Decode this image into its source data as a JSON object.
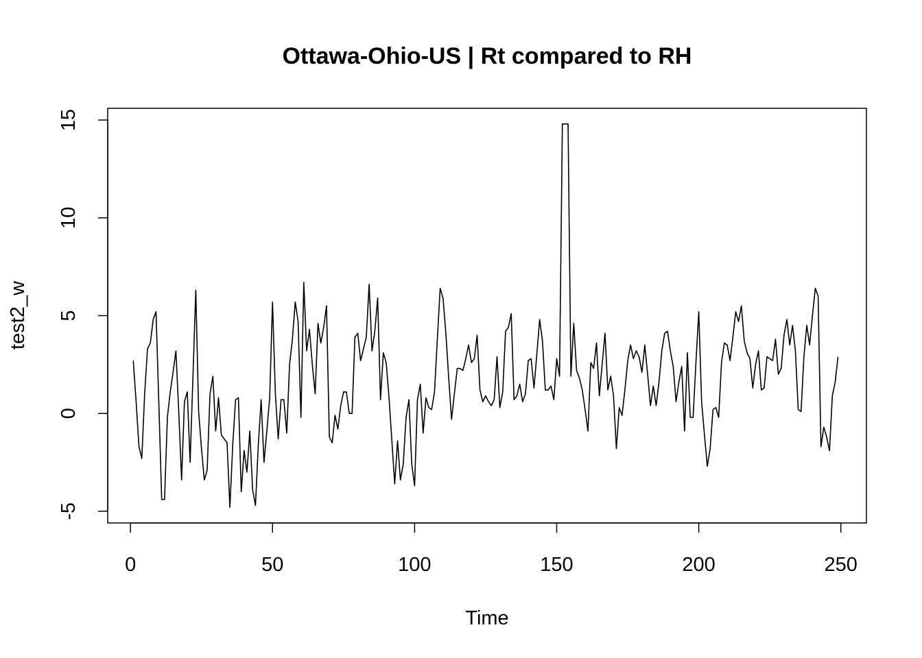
{
  "chart_data": {
    "type": "line",
    "title": "Ottawa-Ohio-US | Rt compared to RH",
    "xlabel": "Time",
    "ylabel": "test2_w",
    "xlim": [
      -8,
      259
    ],
    "ylim": [
      -5.6,
      15.6
    ],
    "xticks": [
      0,
      50,
      100,
      150,
      200,
      250
    ],
    "yticks": [
      -5,
      0,
      5,
      10,
      15
    ],
    "grid": false,
    "line_color": "#000000",
    "series": [
      {
        "x_start": 1,
        "values": [
          2.7,
          0.6,
          -1.7,
          -2.3,
          1.0,
          3.3,
          3.6,
          4.8,
          5.2,
          0.5,
          -4.4,
          -4.4,
          -0.2,
          1.1,
          2.1,
          3.2,
          0.1,
          -3.4,
          0.6,
          1.1,
          -2.5,
          1.9,
          6.3,
          0.1,
          -1.8,
          -3.4,
          -2.9,
          1.0,
          1.9,
          -0.9,
          0.8,
          -1.1,
          -1.3,
          -1.5,
          -4.8,
          -1.6,
          0.7,
          0.8,
          -4.0,
          -1.9,
          -3.0,
          -0.9,
          -3.9,
          -4.7,
          -1.6,
          0.7,
          -2.5,
          -0.9,
          0.8,
          5.7,
          1.0,
          -1.3,
          0.7,
          0.7,
          -1.0,
          2.5,
          3.8,
          5.7,
          4.7,
          -0.2,
          6.7,
          3.2,
          4.3,
          2.5,
          1.0,
          4.6,
          3.6,
          4.4,
          5.5,
          -1.2,
          -1.5,
          -0.1,
          -0.8,
          0.4,
          1.1,
          1.1,
          0.0,
          0.0,
          3.9,
          4.1,
          2.7,
          3.3,
          3.9,
          6.6,
          3.2,
          4.2,
          5.9,
          0.7,
          3.1,
          2.6,
          0.8,
          -1.4,
          -3.6,
          -1.4,
          -3.4,
          -2.6,
          -0.2,
          0.7,
          -2.6,
          -3.7,
          0.7,
          1.5,
          -1.0,
          0.8,
          0.3,
          0.2,
          1.1,
          3.8,
          6.4,
          5.9,
          4.1,
          1.8,
          -0.3,
          1.0,
          2.3,
          2.3,
          2.2,
          2.8,
          3.5,
          2.6,
          2.8,
          4.0,
          1.2,
          0.6,
          0.9,
          0.6,
          0.4,
          0.7,
          2.9,
          0.3,
          1.1,
          4.2,
          4.4,
          5.1,
          0.7,
          0.9,
          1.5,
          0.6,
          1.0,
          2.7,
          2.8,
          1.3,
          3.0,
          4.8,
          3.7,
          1.2,
          1.2,
          1.4,
          0.7,
          2.8,
          1.9,
          14.8,
          14.8,
          14.8,
          1.9,
          4.6,
          2.2,
          1.8,
          1.2,
          0.2,
          -0.9,
          2.6,
          2.3,
          3.6,
          0.9,
          2.5,
          4.1,
          1.2,
          1.9,
          0.9,
          -1.8,
          0.3,
          -0.1,
          1.2,
          2.7,
          3.5,
          2.8,
          3.2,
          2.9,
          2.1,
          3.5,
          2.0,
          0.4,
          1.4,
          0.4,
          1.6,
          3.2,
          4.1,
          4.2,
          3.2,
          2.4,
          0.6,
          1.6,
          2.4,
          -0.9,
          3.1,
          -0.2,
          -0.2,
          2.6,
          5.2,
          0.6,
          -1.1,
          -2.7,
          -1.8,
          0.2,
          0.3,
          -0.2,
          2.6,
          3.6,
          3.5,
          2.7,
          3.9,
          5.2,
          4.7,
          5.5,
          3.7,
          3.1,
          2.8,
          1.3,
          2.5,
          3.2,
          1.2,
          1.3,
          2.9,
          2.8,
          2.7,
          3.8,
          2.0,
          2.3,
          4.0,
          4.8,
          3.5,
          4.5,
          3.2,
          0.2,
          0.1,
          2.9,
          4.5,
          3.5,
          5.0,
          6.4,
          6.0,
          -1.7,
          -0.7,
          -1.2,
          -1.9,
          0.9,
          1.6,
          2.9
        ]
      }
    ]
  }
}
